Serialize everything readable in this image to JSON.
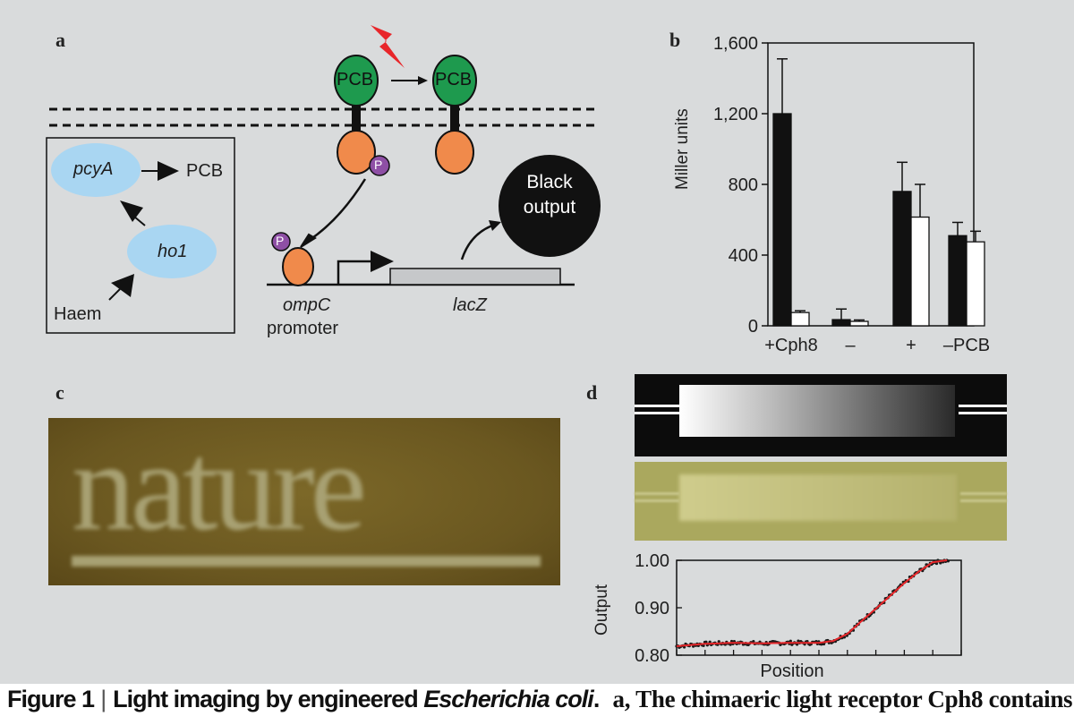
{
  "panels": {
    "a": {
      "letter": "a",
      "pcb_label": "PCB",
      "p_label": "P",
      "gene_pcya": "pcyA",
      "gene_ho1": "ho1",
      "pcb_product": "PCB",
      "haem": "Haem",
      "ompc": "ompC",
      "promoter": "promoter",
      "lacz": "lacZ",
      "output_line1": "Black",
      "output_line2": "output",
      "colors": {
        "pcb": "#1e9a4e",
        "domain": "#f08a4b",
        "phospho": "#8e4fa5",
        "gene": "#a9d6f2",
        "flash": "#e8262a"
      }
    },
    "b": {
      "letter": "b",
      "ylabel": "Miller units"
    },
    "c": {
      "letter": "c",
      "photo_text": "nature",
      "colors": {
        "bg": "#6e5a22",
        "text": "#a8a173"
      }
    },
    "d": {
      "letter": "d",
      "xlabel": "Position",
      "ylabel": "Output",
      "yticks": [
        "1.00",
        "0.90",
        "0.80"
      ],
      "colors": {
        "data": "#1a1a1a",
        "fit": "#e8262a",
        "plate": "#aaa85e"
      }
    }
  },
  "chart_data": [
    {
      "type": "bar",
      "title": "",
      "categories": [
        "+Cph8",
        "–",
        "+",
        "–PCB"
      ],
      "xlabel": "",
      "ylabel": "Miller units",
      "ylim": [
        0,
        1600
      ],
      "yticks": [
        0,
        400,
        800,
        1200,
        1600
      ],
      "ytick_labels": [
        "0",
        "400",
        "800",
        "1,200",
        "1,600"
      ],
      "series": [
        {
          "color": "#111111",
          "values": [
            1200,
            35,
            760,
            510
          ],
          "errors": [
            310,
            60,
            165,
            75
          ]
        },
        {
          "color": "#ffffff",
          "values": [
            75,
            25,
            615,
            475
          ],
          "errors": [
            10,
            8,
            185,
            60
          ]
        }
      ]
    },
    {
      "type": "scatter",
      "title": "",
      "xlabel": "Position",
      "ylabel": "Output",
      "ylim": [
        0.8,
        1.0
      ],
      "yticks": [
        0.8,
        0.9,
        1.0
      ],
      "x_range": [
        0,
        1
      ],
      "points": [
        [
          0.0,
          0.819
        ],
        [
          0.1,
          0.824
        ],
        [
          0.2,
          0.826
        ],
        [
          0.3,
          0.825
        ],
        [
          0.4,
          0.826
        ],
        [
          0.5,
          0.826
        ],
        [
          0.55,
          0.83
        ],
        [
          0.6,
          0.845
        ],
        [
          0.65,
          0.872
        ],
        [
          0.7,
          0.898
        ],
        [
          0.75,
          0.925
        ],
        [
          0.8,
          0.952
        ],
        [
          0.85,
          0.976
        ],
        [
          0.9,
          0.996
        ],
        [
          0.95,
          1.0
        ]
      ]
    }
  ],
  "caption": {
    "label": "Figure 1",
    "separator": "|",
    "title_start": "Light imaging by engineered ",
    "title_species": "Escherichia coli",
    "title_end": ".",
    "body_label": "a,",
    "body_text": " The chimaeric light receptor Cph8 contains"
  }
}
